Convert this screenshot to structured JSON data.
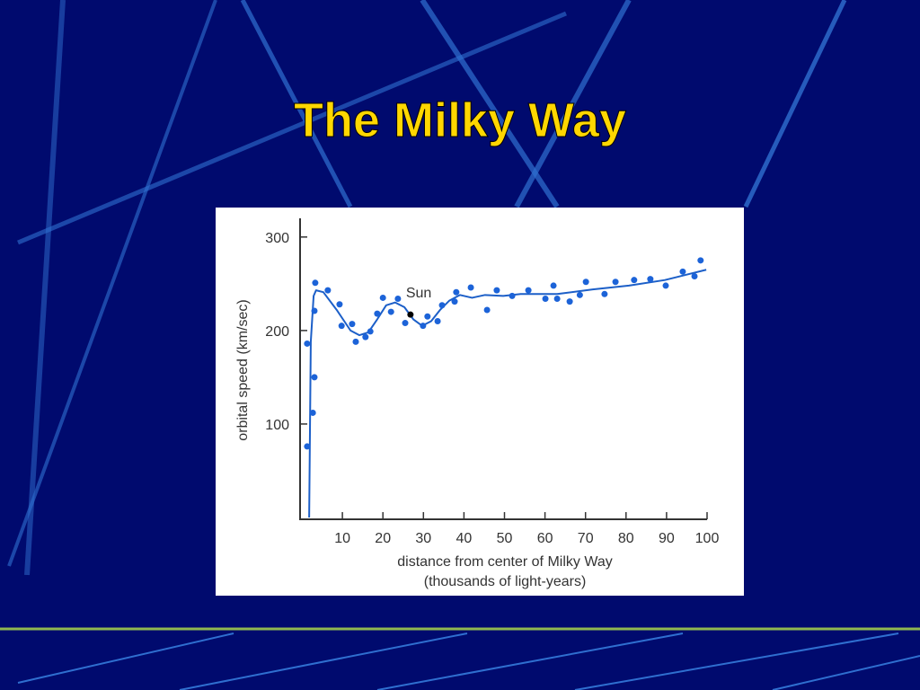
{
  "chart_data": {
    "type": "scatter",
    "title": "The Milky Way",
    "xlabel": [
      "distance from center of Milky Way",
      "(thousands of light-years)"
    ],
    "ylabel": "orbital speed (km/sec)",
    "xlim": [
      0,
      100
    ],
    "ylim": [
      0,
      320
    ],
    "xticks": [
      10,
      20,
      30,
      40,
      50,
      60,
      70,
      80,
      90,
      100
    ],
    "yticks": [
      100,
      200,
      300
    ],
    "series": [
      {
        "kind": "points",
        "color": "#1c63d8",
        "x": [
          1.3,
          1.3,
          2.7,
          3.1,
          3.1,
          3.3,
          6.4,
          9.3,
          9.8,
          12.4,
          13.3,
          15.7,
          16.9,
          18.6,
          20,
          22,
          23.7,
          25.5,
          29.9,
          31,
          33.5,
          34.6,
          37.7,
          38.1,
          41.7,
          45.7,
          48.1,
          51.9,
          55.9,
          60.1,
          62.1,
          63,
          66.1,
          68.6,
          70.1,
          74.7,
          77.4,
          82,
          86,
          89.8,
          94,
          96.9,
          98.4
        ],
        "values": [
          186,
          76,
          112,
          150,
          221,
          251,
          243,
          228,
          205,
          207,
          188,
          193,
          199,
          218,
          235,
          220,
          234,
          208,
          205,
          215,
          210,
          227,
          231,
          241,
          246,
          222,
          243,
          237,
          243,
          234,
          248,
          234,
          231,
          238,
          252,
          239,
          252,
          254,
          255,
          248,
          263,
          258,
          275
        ]
      },
      {
        "kind": "curve",
        "color": "#1c5fc8",
        "x": [
          1.8,
          2.2,
          2.9,
          3.5,
          5.3,
          8.6,
          12,
          14.2,
          16.4,
          18.6,
          20.8,
          23,
          25.3,
          27.5,
          29.7,
          31.9,
          34.1,
          36.4,
          39,
          42,
          45.2,
          49.7,
          54,
          63,
          71.8,
          80.7,
          89.6,
          99.8
        ],
        "values": [
          0,
          188,
          237,
          243,
          241,
          222,
          200,
          195,
          198,
          212,
          227,
          230,
          225,
          212,
          205,
          210,
          222,
          232,
          238,
          235,
          238,
          237,
          239,
          239,
          244,
          248,
          254,
          265
        ]
      },
      {
        "kind": "points",
        "color": "#000000",
        "label": "Sun",
        "x": [
          26.8
        ],
        "values": [
          217
        ]
      }
    ]
  }
}
